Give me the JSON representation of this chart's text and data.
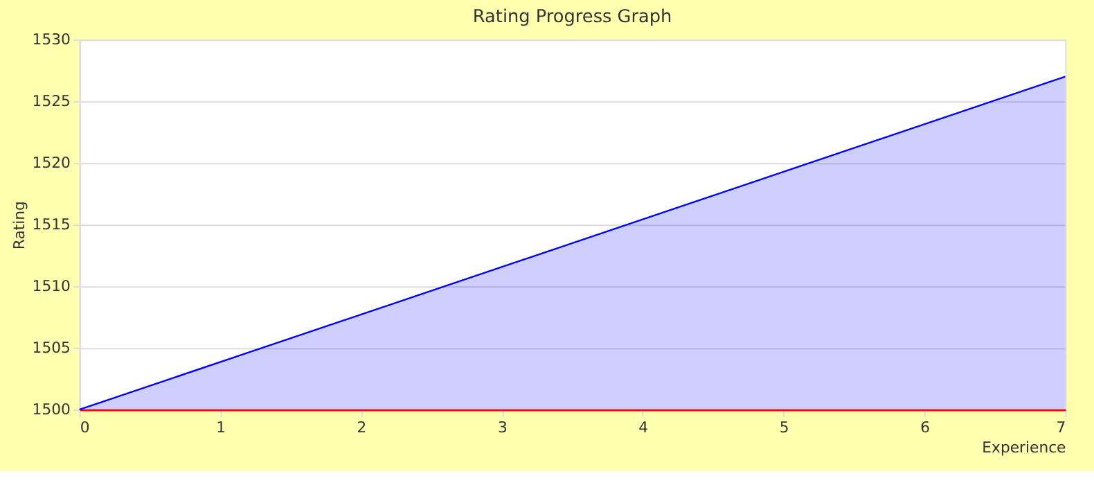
{
  "chart_data": {
    "type": "area",
    "title": "Rating Progress Graph",
    "xlabel": "Experience",
    "ylabel": "Rating",
    "x": [
      0,
      7
    ],
    "series": [
      {
        "color": "#0000ff",
        "values": [
          1500,
          1527
        ]
      }
    ],
    "xlim": [
      0,
      7
    ],
    "xticks": [
      0,
      1,
      2,
      3,
      4,
      5,
      6,
      7
    ],
    "ylim": [
      1500,
      1530
    ],
    "yticks": [
      1500,
      1505,
      1510,
      1515,
      1520,
      1525,
      1530
    ],
    "grid": "y"
  }
}
